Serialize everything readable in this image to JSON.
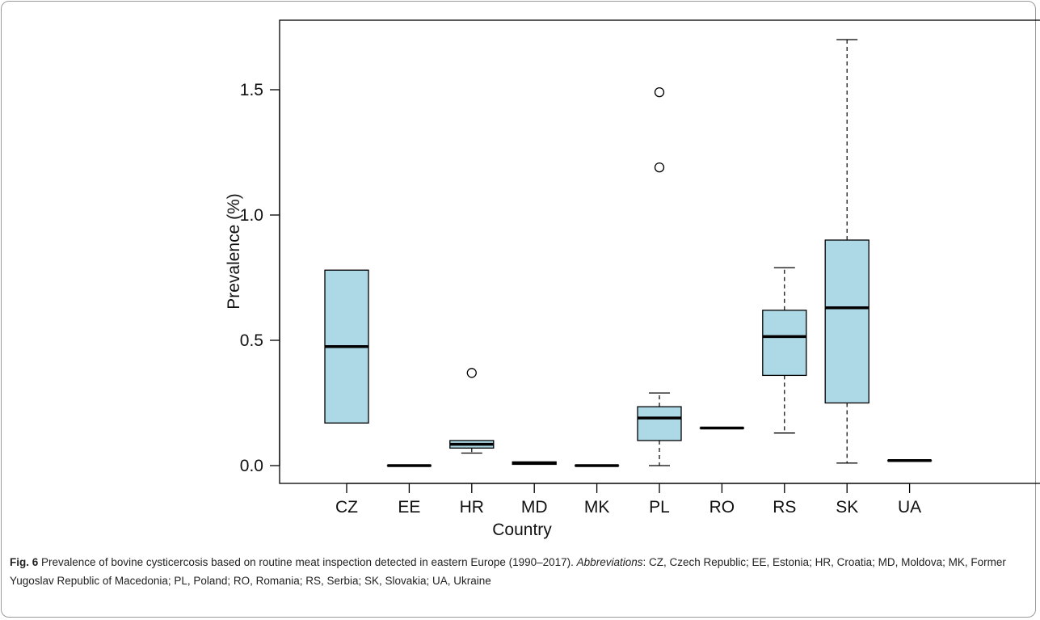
{
  "chart_data": {
    "type": "boxplot",
    "title": "",
    "xlabel": "Country",
    "ylabel": "Prevalence (%)",
    "ylim": [
      -0.07,
      1.75
    ],
    "yticks": [
      0.0,
      0.5,
      1.0,
      1.5
    ],
    "ytick_labels": [
      "0.0",
      "0.5",
      "1.0",
      "1.5"
    ],
    "box_fill": "#add8e6",
    "box_stroke": "#000000",
    "categories": [
      "CZ",
      "EE",
      "HR",
      "MD",
      "MK",
      "PL",
      "RO",
      "RS",
      "SK",
      "UA"
    ],
    "series": [
      {
        "category": "CZ",
        "min": 0.17,
        "q1": 0.17,
        "median": 0.475,
        "q3": 0.78,
        "max": 0.78,
        "outliers": []
      },
      {
        "category": "EE",
        "min": 0.0,
        "q1": 0.0,
        "median": 0.0,
        "q3": 0.0,
        "max": 0.0,
        "outliers": []
      },
      {
        "category": "HR",
        "min": 0.05,
        "q1": 0.07,
        "median": 0.085,
        "q3": 0.1,
        "max": 0.1,
        "outliers": [
          0.37
        ]
      },
      {
        "category": "MD",
        "min": 0.005,
        "q1": 0.005,
        "median": 0.01,
        "q3": 0.015,
        "max": 0.015,
        "outliers": []
      },
      {
        "category": "MK",
        "min": 0.0,
        "q1": 0.0,
        "median": 0.0,
        "q3": 0.0,
        "max": 0.0,
        "outliers": []
      },
      {
        "category": "PL",
        "min": 0.0,
        "q1": 0.1,
        "median": 0.19,
        "q3": 0.235,
        "max": 0.29,
        "outliers": [
          1.19,
          1.49
        ]
      },
      {
        "category": "RO",
        "min": 0.15,
        "q1": 0.15,
        "median": 0.15,
        "q3": 0.15,
        "max": 0.15,
        "outliers": []
      },
      {
        "category": "RS",
        "min": 0.13,
        "q1": 0.36,
        "median": 0.515,
        "q3": 0.62,
        "max": 0.79,
        "outliers": []
      },
      {
        "category": "SK",
        "min": 0.01,
        "q1": 0.25,
        "median": 0.63,
        "q3": 0.9,
        "max": 1.7,
        "outliers": []
      },
      {
        "category": "UA",
        "min": 0.02,
        "q1": 0.02,
        "median": 0.02,
        "q3": 0.02,
        "max": 0.02,
        "outliers": []
      }
    ]
  },
  "caption": {
    "fig_label": "Fig. 6",
    "text": " Prevalence of bovine cysticercosis based on routine meat inspection detected in eastern Europe (1990–2017). ",
    "abbr_label": "Abbreviations",
    "abbr_text": ": CZ, Czech Republic; EE, Estonia; HR, Croatia; MD, Moldova; MK, Former Yugoslav Republic of Macedonia; PL, Poland; RO, Romania; RS, Serbia; SK, Slovakia; UA, Ukraine"
  }
}
